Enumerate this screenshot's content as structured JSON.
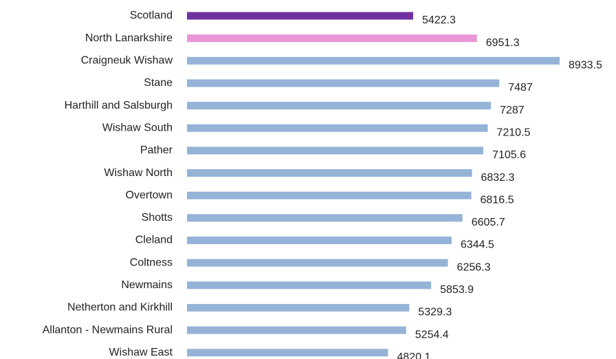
{
  "chart_data": {
    "type": "bar",
    "orientation": "horizontal",
    "categories": [
      "Scotland",
      "North Lanarkshire",
      "Craigneuk Wishaw",
      "Stane",
      "Harthill and Salsburgh",
      "Wishaw South",
      "Pather",
      "Wishaw North",
      "Overtown",
      "Shotts",
      "Cleland",
      "Coltness",
      "Newmains",
      "Netherton and Kirkhill",
      "Allanton - Newmains Rural",
      "Wishaw East"
    ],
    "values": [
      5422.3,
      6951.3,
      8933.5,
      7487,
      7287,
      7210.5,
      7105.6,
      6832.3,
      6816.5,
      6605.7,
      6344.5,
      6256.3,
      5853.9,
      5329.3,
      5254.4,
      4820.1
    ],
    "colors": [
      "#7030a0",
      "#e996d8",
      "#95b3d7",
      "#95b3d7",
      "#95b3d7",
      "#95b3d7",
      "#95b3d7",
      "#95b3d7",
      "#95b3d7",
      "#95b3d7",
      "#95b3d7",
      "#95b3d7",
      "#95b3d7",
      "#95b3d7",
      "#95b3d7",
      "#95b3d7"
    ],
    "xlim": [
      0,
      9000
    ]
  }
}
